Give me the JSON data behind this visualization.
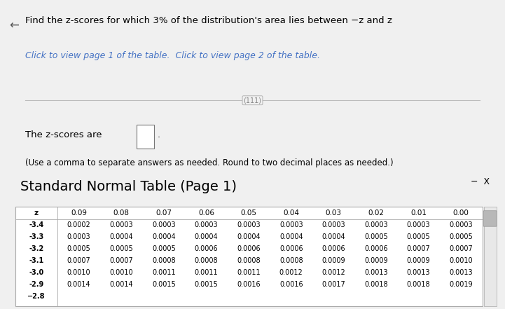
{
  "top_bg_color": "#f0f0f0",
  "bottom_bg_color": "#ffffff",
  "top_text": "Find the z-scores for which 3% of the distribution's area lies between −z and z",
  "link_text": "Click to view page 1 of the table.  Click to view page 2 of the table.",
  "answer_label": "The z-scores are",
  "answer_note": "(Use a comma to separate answers as needed. Round to two decimal places as needed.)",
  "table_title": "Standard Normal Table (Page 1)",
  "close_button": "−  X",
  "col_headers": [
    "z",
    "0.09",
    "0.08",
    "0.07",
    "0.06",
    "0.05",
    "0.04",
    "0.03",
    "0.02",
    "0.01",
    "0.00"
  ],
  "rows": [
    [
      "-3.4",
      "0.0002",
      "0.0003",
      "0.0003",
      "0.0003",
      "0.0003",
      "0.0003",
      "0.0003",
      "0.0003",
      "0.0003",
      "0.0003"
    ],
    [
      "-3.3",
      "0.0003",
      "0.0004",
      "0.0004",
      "0.0004",
      "0.0004",
      "0.0004",
      "0.0004",
      "0.0005",
      "0.0005",
      "0.0005"
    ],
    [
      "-3.2",
      "0.0005",
      "0.0005",
      "0.0005",
      "0.0006",
      "0.0006",
      "0.0006",
      "0.0006",
      "0.0006",
      "0.0007",
      "0.0007"
    ],
    [
      "-3.1",
      "0.0007",
      "0.0007",
      "0.0008",
      "0.0008",
      "0.0008",
      "0.0008",
      "0.0009",
      "0.0009",
      "0.0009",
      "0.0010"
    ],
    [
      "-3.0",
      "0.0010",
      "0.0010",
      "0.0011",
      "0.0011",
      "0.0011",
      "0.0012",
      "0.0012",
      "0.0013",
      "0.0013",
      "0.0013"
    ],
    [
      "-2.9",
      "0.0014",
      "0.0014",
      "0.0015",
      "0.0015",
      "0.0016",
      "0.0016",
      "0.0017",
      "0.0018",
      "0.0018",
      "0.0019"
    ]
  ],
  "partial_row_label": "−2.8",
  "table_border_color": "#aaaaaa",
  "link_color": "#4472c4",
  "text_color": "#000000",
  "header_font_size": 7.5,
  "row_font_size": 7.0,
  "title_font_size": 14
}
